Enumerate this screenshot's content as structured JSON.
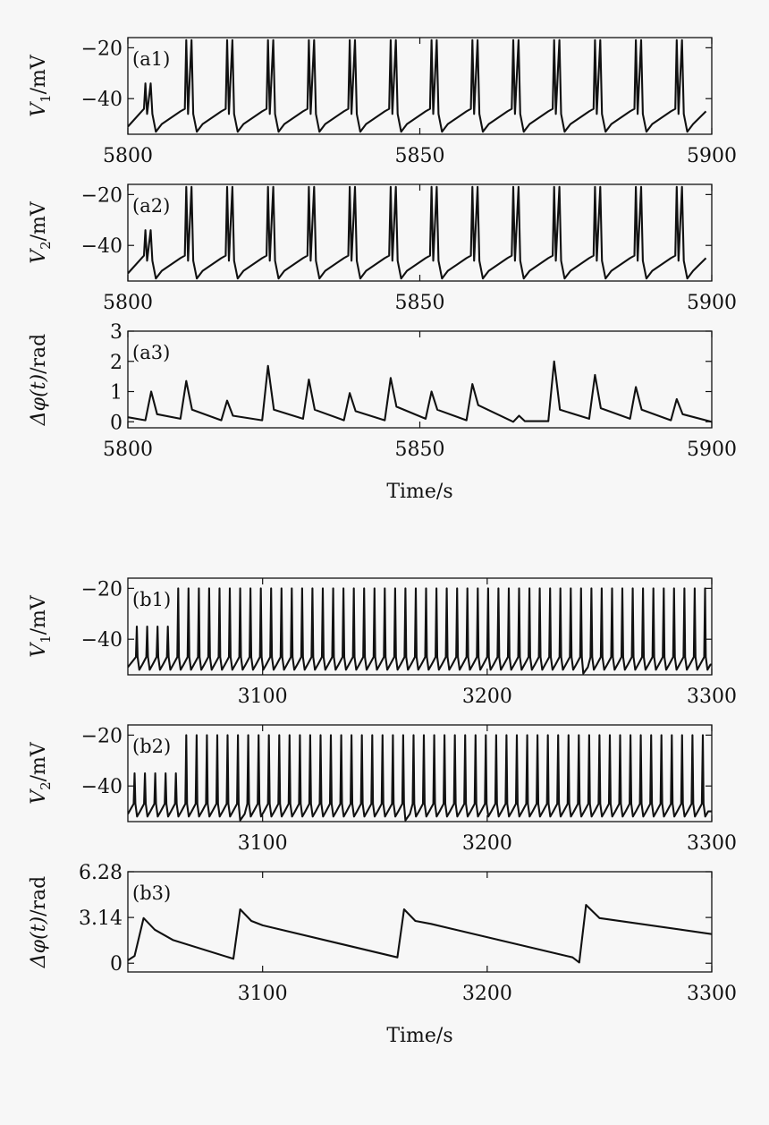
{
  "chart_data": [
    {
      "type": "line",
      "panel_label": "(a1)",
      "ylabel_sym": "V",
      "ylabel_sub": "1",
      "ylabel_unit": "/mV",
      "xlim": [
        5800,
        5900
      ],
      "ylim": [
        -54,
        -16
      ],
      "xticks": [
        "5800",
        "5850",
        "5900"
      ],
      "xtick_values": [
        5800,
        5850,
        5900
      ],
      "yticks": [
        "−20",
        "−40"
      ],
      "ytick_values": [
        -20,
        -40
      ],
      "xlabel": "",
      "trace": {
        "kind": "spikes",
        "base": -51,
        "pre": -44,
        "drop": -53,
        "peak": -16,
        "events": [
          [
            5803,
            2,
            -34
          ],
          [
            5810,
            2,
            -17
          ],
          [
            5817,
            2,
            -17
          ],
          [
            5824,
            2,
            -17
          ],
          [
            5831,
            2,
            -17
          ],
          [
            5838,
            2,
            -17
          ],
          [
            5845,
            2,
            -17
          ],
          [
            5852,
            2,
            -17
          ],
          [
            5859,
            2,
            -17
          ],
          [
            5866,
            2,
            -17
          ],
          [
            5873,
            2,
            -17
          ],
          [
            5880,
            2,
            -17
          ],
          [
            5887,
            2,
            -17
          ],
          [
            5894,
            2,
            -17
          ]
        ]
      }
    },
    {
      "type": "line",
      "panel_label": "(a2)",
      "ylabel_sym": "V",
      "ylabel_sub": "2",
      "ylabel_unit": "/mV",
      "xlim": [
        5800,
        5900
      ],
      "ylim": [
        -54,
        -16
      ],
      "xticks": [
        "5800",
        "5850",
        "5900"
      ],
      "xtick_values": [
        5800,
        5850,
        5900
      ],
      "yticks": [
        "−20",
        "−40"
      ],
      "ytick_values": [
        -20,
        -40
      ],
      "xlabel": "",
      "trace": {
        "kind": "spikes",
        "base": -51,
        "pre": -44,
        "drop": -53,
        "peak": -16,
        "events": [
          [
            5803,
            2,
            -34
          ],
          [
            5810,
            2,
            -17
          ],
          [
            5817,
            2,
            -17
          ],
          [
            5824,
            2,
            -17
          ],
          [
            5831,
            2,
            -17
          ],
          [
            5838,
            2,
            -17
          ],
          [
            5845,
            2,
            -17
          ],
          [
            5852,
            2,
            -17
          ],
          [
            5859,
            2,
            -17
          ],
          [
            5866,
            2,
            -17
          ],
          [
            5873,
            2,
            -17
          ],
          [
            5880,
            2,
            -17
          ],
          [
            5887,
            2,
            -17
          ],
          [
            5894,
            2,
            -17
          ]
        ]
      }
    },
    {
      "type": "line",
      "panel_label": "(a3)",
      "ylabel_sym": "Δφ(t)",
      "ylabel_sub": "",
      "ylabel_unit": "/rad",
      "xlim": [
        5800,
        5900
      ],
      "ylim": [
        -0.2,
        3
      ],
      "xticks": [
        "5800",
        "5850",
        "5900"
      ],
      "xtick_values": [
        5800,
        5850,
        5900
      ],
      "yticks": [
        "3",
        "2",
        "1",
        "0"
      ],
      "ytick_values": [
        3,
        2,
        1,
        0
      ],
      "xlabel": "Time/s",
      "trace": {
        "kind": "polyline",
        "points": [
          [
            5800,
            0.15
          ],
          [
            5803,
            0.05
          ],
          [
            5804,
            1.0
          ],
          [
            5805,
            0.25
          ],
          [
            5809,
            0.1
          ],
          [
            5810,
            1.35
          ],
          [
            5811,
            0.4
          ],
          [
            5816,
            0.05
          ],
          [
            5817,
            0.7
          ],
          [
            5818,
            0.2
          ],
          [
            5823,
            0.05
          ],
          [
            5824,
            1.85
          ],
          [
            5825,
            0.4
          ],
          [
            5830,
            0.1
          ],
          [
            5831,
            1.4
          ],
          [
            5832,
            0.4
          ],
          [
            5837,
            0.05
          ],
          [
            5838,
            0.95
          ],
          [
            5839,
            0.35
          ],
          [
            5844,
            0.05
          ],
          [
            5845,
            1.45
          ],
          [
            5846,
            0.5
          ],
          [
            5851,
            0.1
          ],
          [
            5852,
            1.0
          ],
          [
            5853,
            0.4
          ],
          [
            5858,
            0.05
          ],
          [
            5859,
            1.25
          ],
          [
            5860,
            0.55
          ],
          [
            5866,
            0.0
          ],
          [
            5867,
            0.2
          ],
          [
            5868,
            0.02
          ],
          [
            5872,
            0.02
          ],
          [
            5873,
            2.0
          ],
          [
            5874,
            0.4
          ],
          [
            5879,
            0.1
          ],
          [
            5880,
            1.55
          ],
          [
            5881,
            0.45
          ],
          [
            5886,
            0.1
          ],
          [
            5887,
            1.15
          ],
          [
            5888,
            0.4
          ],
          [
            5893,
            0.05
          ],
          [
            5894,
            0.75
          ],
          [
            5895,
            0.25
          ],
          [
            5900,
            0.0
          ]
        ]
      }
    },
    {
      "type": "line",
      "panel_label": "(b1)",
      "ylabel_sym": "V",
      "ylabel_sub": "1",
      "ylabel_unit": "/mV",
      "xlim": [
        3040,
        3300
      ],
      "ylim": [
        -54,
        -16
      ],
      "xticks": [
        "3100",
        "3200",
        "3300"
      ],
      "xtick_values": [
        3100,
        3200,
        3300
      ],
      "yticks": [
        "−20",
        "−40"
      ],
      "ytick_values": [
        -20,
        -40
      ],
      "xlabel": "",
      "trace": {
        "kind": "periodic",
        "base": -51,
        "pre": -47,
        "drop": -52,
        "start": 3044,
        "end": 3298,
        "period": 4.6,
        "small_until": 3062,
        "small_peak": -35,
        "big_peak": -20,
        "dips": [
          3241
        ]
      }
    },
    {
      "type": "line",
      "panel_label": "(b2)",
      "ylabel_sym": "V",
      "ylabel_sub": "2",
      "ylabel_unit": "/mV",
      "xlim": [
        3040,
        3300
      ],
      "ylim": [
        -54,
        -16
      ],
      "xticks": [
        "3100",
        "3200",
        "3300"
      ],
      "xtick_values": [
        3100,
        3200,
        3300
      ],
      "yticks": [
        "−20",
        "−40"
      ],
      "ytick_values": [
        -20,
        -40
      ],
      "xlabel": "",
      "trace": {
        "kind": "periodic",
        "base": -51,
        "pre": -47,
        "drop": -52,
        "start": 3043,
        "end": 3298,
        "period": 4.6,
        "small_until": 3062,
        "small_peak": -35,
        "big_peak": -20,
        "dips": [
          3089,
          3163
        ]
      }
    },
    {
      "type": "line",
      "panel_label": "(b3)",
      "ylabel_sym": "Δφ(t)",
      "ylabel_sub": "",
      "ylabel_unit": "/rad",
      "xlim": [
        3040,
        3300
      ],
      "ylim": [
        -0.6,
        6.28
      ],
      "xticks": [
        "3100",
        "3200",
        "3300"
      ],
      "xtick_values": [
        3100,
        3200,
        3300
      ],
      "yticks": [
        "6.28",
        "3.14",
        "0"
      ],
      "ytick_values": [
        6.28,
        3.14,
        0
      ],
      "xlabel": "Time/s",
      "trace": {
        "kind": "polyline",
        "points": [
          [
            3040,
            0.2
          ],
          [
            3043,
            0.5
          ],
          [
            3047,
            3.1
          ],
          [
            3052,
            2.3
          ],
          [
            3060,
            1.6
          ],
          [
            3087,
            0.3
          ],
          [
            3090,
            3.7
          ],
          [
            3095,
            2.9
          ],
          [
            3100,
            2.6
          ],
          [
            3160,
            0.4
          ],
          [
            3163,
            3.7
          ],
          [
            3168,
            2.9
          ],
          [
            3175,
            2.7
          ],
          [
            3238,
            0.4
          ],
          [
            3241,
            0.05
          ],
          [
            3244,
            4.0
          ],
          [
            3250,
            3.1
          ],
          [
            3300,
            2.0
          ]
        ]
      }
    }
  ]
}
